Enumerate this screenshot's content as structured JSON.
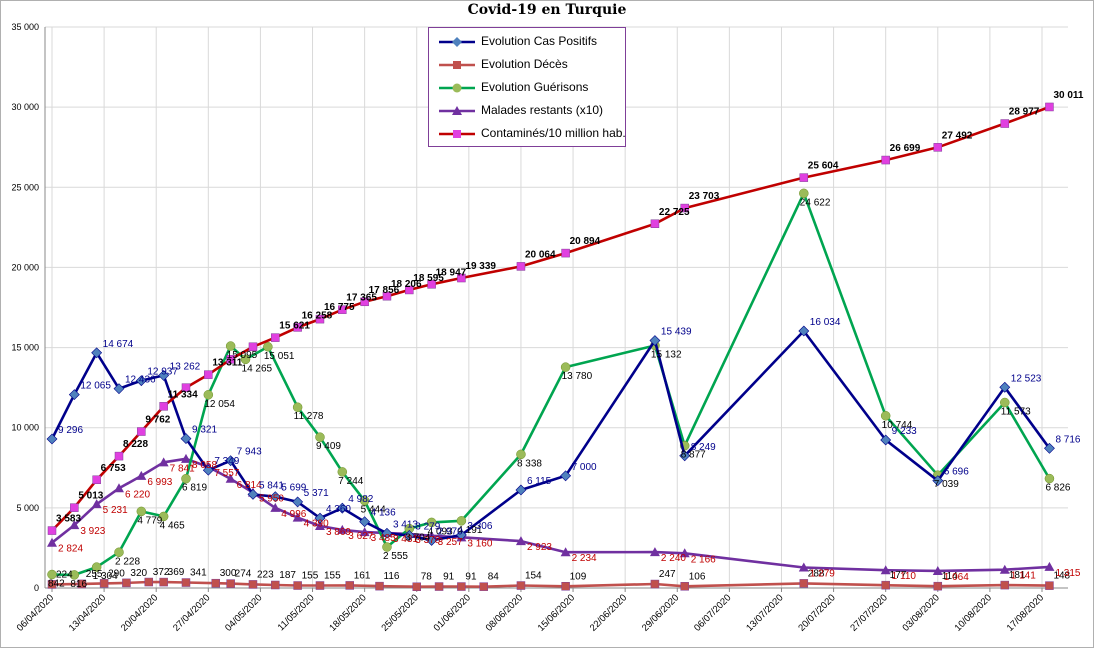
{
  "chart_data": {
    "type": "line",
    "title": "Covid-19 en Turquie",
    "legend_position": "top-center",
    "grid": true,
    "ylim": [
      0,
      35000
    ],
    "y_ticks": [
      "0",
      "5 000",
      "10 000",
      "15 000",
      "20 000",
      "25 000",
      "30 000",
      "35 000"
    ],
    "x_ticks": [
      "06/04/2020",
      "13/04/2020",
      "20/04/2020",
      "27/04/2020",
      "04/05/2020",
      "11/05/2020",
      "18/05/2020",
      "25/05/2020",
      "01/06/2020",
      "08/06/2020",
      "15/06/2020",
      "22/06/2020",
      "29/06/2020",
      "06/07/2020",
      "13/07/2020",
      "20/07/2020",
      "27/07/2020",
      "03/08/2020",
      "10/08/2020",
      "17/08/2020"
    ],
    "series": [
      {
        "name": "Evolution Cas Positifs",
        "color": "#00008b",
        "marker": "diamond",
        "marker_color": "#4f81bd",
        "label_color": "#00008b",
        "points": [
          {
            "x": "06/04/2020",
            "y": 9296,
            "label": "9 296"
          },
          {
            "x": "09/04/2020",
            "y": 12065,
            "label": "12 065"
          },
          {
            "x": "12/04/2020",
            "y": 14674,
            "label": "14 674"
          },
          {
            "x": "15/04/2020",
            "y": 12436,
            "label": "12 436"
          },
          {
            "x": "18/04/2020",
            "y": 12937,
            "label": "12 937"
          },
          {
            "x": "21/04/2020",
            "y": 13262,
            "label": "13 262"
          },
          {
            "x": "24/04/2020",
            "y": 9321,
            "label": "9 321"
          },
          {
            "x": "27/04/2020",
            "y": 7349,
            "label": "7 349"
          },
          {
            "x": "30/04/2020",
            "y": 7943,
            "label": "7 943"
          },
          {
            "x": "03/05/2020",
            "y": 5841,
            "label": "5 841"
          },
          {
            "x": "06/05/2020",
            "y": 5699,
            "label": "5 699"
          },
          {
            "x": "09/05/2020",
            "y": 5371,
            "label": "5 371"
          },
          {
            "x": "12/05/2020",
            "y": 4360,
            "label": "4 360"
          },
          {
            "x": "15/05/2020",
            "y": 4982,
            "label": "4 982"
          },
          {
            "x": "18/05/2020",
            "y": 4136,
            "label": "4 136"
          },
          {
            "x": "21/05/2020",
            "y": 3413,
            "label": "3 413"
          },
          {
            "x": "24/05/2020",
            "y": 3279,
            "label": "3 279"
          },
          {
            "x": "27/05/2020",
            "y": 2970,
            "label": "2 970"
          },
          {
            "x": "31/05/2020",
            "y": 3306,
            "label": "3 306"
          },
          {
            "x": "08/06/2020",
            "y": 6115,
            "label": "6 115"
          },
          {
            "x": "14/06/2020",
            "y": 7000,
            "label": "7 000"
          },
          {
            "x": "26/06/2020",
            "y": 15439,
            "label": "15 439"
          },
          {
            "x": "30/06/2020",
            "y": 8249,
            "label": "8 249"
          },
          {
            "x": "16/07/2020",
            "y": 16034,
            "label": "16 034"
          },
          {
            "x": "27/07/2020",
            "y": 9233,
            "label": "9 233"
          },
          {
            "x": "03/08/2020",
            "y": 6696,
            "label": "6 696"
          },
          {
            "x": "12/08/2020",
            "y": 12523,
            "label": "12 523"
          },
          {
            "x": "18/08/2020",
            "y": 8716,
            "label": "8 716"
          }
        ]
      },
      {
        "name": "Evolution Décès",
        "color": "#c0504d",
        "marker": "square",
        "marker_color": "#c0504d",
        "label_color": "#000000",
        "points": [
          {
            "x": "06/04/2020",
            "y": 224,
            "label": "224"
          },
          {
            "x": "10/04/2020",
            "y": 255,
            "label": "255"
          },
          {
            "x": "13/04/2020",
            "y": 290,
            "label": "290"
          },
          {
            "x": "16/04/2020",
            "y": 320,
            "label": "320"
          },
          {
            "x": "19/04/2020",
            "y": 372,
            "label": "372"
          },
          {
            "x": "21/04/2020",
            "y": 369,
            "label": "369"
          },
          {
            "x": "24/04/2020",
            "y": 341,
            "label": "341"
          },
          {
            "x": "28/04/2020",
            "y": 300,
            "label": "300"
          },
          {
            "x": "30/04/2020",
            "y": 274,
            "label": "274"
          },
          {
            "x": "03/05/2020",
            "y": 223,
            "label": "223"
          },
          {
            "x": "06/05/2020",
            "y": 187,
            "label": "187"
          },
          {
            "x": "09/05/2020",
            "y": 155,
            "label": "155"
          },
          {
            "x": "12/05/2020",
            "y": 155,
            "label": "155"
          },
          {
            "x": "16/05/2020",
            "y": 161,
            "label": "161"
          },
          {
            "x": "20/05/2020",
            "y": 116,
            "label": "116"
          },
          {
            "x": "25/05/2020",
            "y": 78,
            "label": "78"
          },
          {
            "x": "28/05/2020",
            "y": 91,
            "label": "91"
          },
          {
            "x": "31/05/2020",
            "y": 91,
            "label": "91"
          },
          {
            "x": "03/06/2020",
            "y": 84,
            "label": "84"
          },
          {
            "x": "08/06/2020",
            "y": 154,
            "label": "154"
          },
          {
            "x": "14/06/2020",
            "y": 109,
            "label": "109"
          },
          {
            "x": "26/06/2020",
            "y": 247,
            "label": "247"
          },
          {
            "x": "30/06/2020",
            "y": 106,
            "label": "106"
          },
          {
            "x": "16/07/2020",
            "y": 288,
            "label": "288"
          },
          {
            "x": "27/07/2020",
            "y": 177,
            "label": "177"
          },
          {
            "x": "03/08/2020",
            "y": 114,
            "label": "114"
          },
          {
            "x": "12/08/2020",
            "y": 181,
            "label": "181"
          },
          {
            "x": "18/08/2020",
            "y": 148,
            "label": "148"
          }
        ]
      },
      {
        "name": "Evolution Guérisons",
        "color": "#00a550",
        "marker": "circle",
        "marker_color": "#9bbb59",
        "label_color": "#000000",
        "points": [
          {
            "x": "06/04/2020",
            "y": 842,
            "label": "842"
          },
          {
            "x": "09/04/2020",
            "y": 816,
            "label": "816"
          },
          {
            "x": "12/04/2020",
            "y": 1304,
            "label": "1 304"
          },
          {
            "x": "15/04/2020",
            "y": 2228,
            "label": "2 228"
          },
          {
            "x": "18/04/2020",
            "y": 4779,
            "label": "4 779"
          },
          {
            "x": "21/04/2020",
            "y": 4465,
            "label": "4 465"
          },
          {
            "x": "24/04/2020",
            "y": 6819,
            "label": "6 819"
          },
          {
            "x": "27/04/2020",
            "y": 12054,
            "label": "12 054"
          },
          {
            "x": "30/04/2020",
            "y": 15095,
            "label": "15 095"
          },
          {
            "x": "02/05/2020",
            "y": 14265,
            "label": "14 265"
          },
          {
            "x": "05/05/2020",
            "y": 15051,
            "label": "15 051"
          },
          {
            "x": "09/05/2020",
            "y": 11278,
            "label": "11 278"
          },
          {
            "x": "12/05/2020",
            "y": 9409,
            "label": "9 409"
          },
          {
            "x": "15/05/2020",
            "y": 7244,
            "label": "7 244"
          },
          {
            "x": "18/05/2020",
            "y": 5444,
            "label": "5 444"
          },
          {
            "x": "21/05/2020",
            "y": 2555,
            "label": "2 555"
          },
          {
            "x": "24/05/2020",
            "y": 3704,
            "label": "3 704"
          },
          {
            "x": "27/05/2020",
            "y": 4093,
            "label": "4 093"
          },
          {
            "x": "31/05/2020",
            "y": 4191,
            "label": "4 191"
          },
          {
            "x": "08/06/2020",
            "y": 8338,
            "label": "8 338"
          },
          {
            "x": "14/06/2020",
            "y": 13780,
            "label": "13 780"
          },
          {
            "x": "26/06/2020",
            "y": 15132,
            "label": "15 132"
          },
          {
            "x": "30/06/2020",
            "y": 8877,
            "label": "8 877"
          },
          {
            "x": "16/07/2020",
            "y": 24622,
            "label": "24 622"
          },
          {
            "x": "27/07/2020",
            "y": 10744,
            "label": "10 744"
          },
          {
            "x": "03/08/2020",
            "y": 7039,
            "label": "7 039"
          },
          {
            "x": "12/08/2020",
            "y": 11573,
            "label": "11 573"
          },
          {
            "x": "18/08/2020",
            "y": 6826,
            "label": "6 826"
          }
        ]
      },
      {
        "name": "Malades restants (x10)",
        "color": "#7030a0",
        "marker": "triangle",
        "marker_color": "#7030a0",
        "label_color": "#c00000",
        "points": [
          {
            "x": "06/04/2020",
            "y": 2824,
            "label": "2 824"
          },
          {
            "x": "09/04/2020",
            "y": 3923,
            "label": "3 923"
          },
          {
            "x": "12/04/2020",
            "y": 5231,
            "label": "5 231"
          },
          {
            "x": "15/04/2020",
            "y": 6220,
            "label": "6 220"
          },
          {
            "x": "18/04/2020",
            "y": 6993,
            "label": "6 993"
          },
          {
            "x": "21/04/2020",
            "y": 7841,
            "label": "7 841"
          },
          {
            "x": "24/04/2020",
            "y": 8058,
            "label": "8 058"
          },
          {
            "x": "27/04/2020",
            "y": 7557,
            "label": "7 557"
          },
          {
            "x": "30/04/2020",
            "y": 6814,
            "label": "6 814"
          },
          {
            "x": "03/05/2020",
            "y": 5950,
            "label": "5 950"
          },
          {
            "x": "06/05/2020",
            "y": 4996,
            "label": "4 996"
          },
          {
            "x": "09/05/2020",
            "y": 4390,
            "label": "4 390"
          },
          {
            "x": "12/05/2020",
            "y": 3869,
            "label": "3 869"
          },
          {
            "x": "15/05/2020",
            "y": 3627,
            "label": "3 627"
          },
          {
            "x": "18/05/2020",
            "y": 3485,
            "label": "3 485"
          },
          {
            "x": "21/05/2020",
            "y": 3431,
            "label": "3 431"
          },
          {
            "x": "24/05/2020",
            "y": 3378,
            "label": "3 378"
          },
          {
            "x": "27/05/2020",
            "y": 3257,
            "label": "3 257"
          },
          {
            "x": "31/05/2020",
            "y": 3160,
            "label": "3 160"
          },
          {
            "x": "08/06/2020",
            "y": 2923,
            "label": "2 923"
          },
          {
            "x": "14/06/2020",
            "y": 2234,
            "label": "2 234"
          },
          {
            "x": "26/06/2020",
            "y": 2240,
            "label": "2 240"
          },
          {
            "x": "30/06/2020",
            "y": 2166,
            "label": "2 166"
          },
          {
            "x": "16/07/2020",
            "y": 1279,
            "label": "1 279"
          },
          {
            "x": "27/07/2020",
            "y": 1110,
            "label": "1 110"
          },
          {
            "x": "03/08/2020",
            "y": 1064,
            "label": "1 064"
          },
          {
            "x": "12/08/2020",
            "y": 1141,
            "label": "1 141"
          },
          {
            "x": "18/08/2020",
            "y": 1315,
            "label": "1 315"
          }
        ]
      },
      {
        "name": "Contaminés/10 million hab.",
        "color": "#c00000",
        "marker": "square",
        "marker_color": "#e040e0",
        "label_color": "#000000",
        "label_bold": true,
        "points": [
          {
            "x": "06/04/2020",
            "y": 3583,
            "label": "3 583"
          },
          {
            "x": "09/04/2020",
            "y": 5013,
            "label": "5 013"
          },
          {
            "x": "12/04/2020",
            "y": 6753,
            "label": "6 753"
          },
          {
            "x": "15/04/2020",
            "y": 8228,
            "label": "8 228"
          },
          {
            "x": "18/04/2020",
            "y": 9762,
            "label": "9 762"
          },
          {
            "x": "21/04/2020",
            "y": 11334,
            "label": "11 334"
          },
          {
            "x": "24/04/2020",
            "y": 12500,
            "label": ""
          },
          {
            "x": "27/04/2020",
            "y": 13311,
            "label": "13 311"
          },
          {
            "x": "30/04/2020",
            "y": 14265,
            "label": ""
          },
          {
            "x": "03/05/2020",
            "y": 15051,
            "label": ""
          },
          {
            "x": "06/05/2020",
            "y": 15621,
            "label": "15 621"
          },
          {
            "x": "09/05/2020",
            "y": 16258,
            "label": "16 258"
          },
          {
            "x": "12/05/2020",
            "y": 16775,
            "label": "16 775"
          },
          {
            "x": "15/05/2020",
            "y": 17365,
            "label": "17 365"
          },
          {
            "x": "18/05/2020",
            "y": 17856,
            "label": "17 856"
          },
          {
            "x": "21/05/2020",
            "y": 18206,
            "label": "18 206"
          },
          {
            "x": "24/05/2020",
            "y": 18595,
            "label": "18 595"
          },
          {
            "x": "27/05/2020",
            "y": 18947,
            "label": "18 947"
          },
          {
            "x": "31/05/2020",
            "y": 19339,
            "label": "19 339"
          },
          {
            "x": "08/06/2020",
            "y": 20064,
            "label": "20 064"
          },
          {
            "x": "14/06/2020",
            "y": 20894,
            "label": "20 894"
          },
          {
            "x": "26/06/2020",
            "y": 22725,
            "label": "22 725"
          },
          {
            "x": "30/06/2020",
            "y": 23703,
            "label": "23 703"
          },
          {
            "x": "16/07/2020",
            "y": 25604,
            "label": "25 604"
          },
          {
            "x": "27/07/2020",
            "y": 26699,
            "label": "26 699"
          },
          {
            "x": "03/08/2020",
            "y": 27492,
            "label": "27 492"
          },
          {
            "x": "12/08/2020",
            "y": 28977,
            "label": "28 977"
          },
          {
            "x": "18/08/2020",
            "y": 30011,
            "label": "30 011"
          }
        ]
      }
    ]
  }
}
